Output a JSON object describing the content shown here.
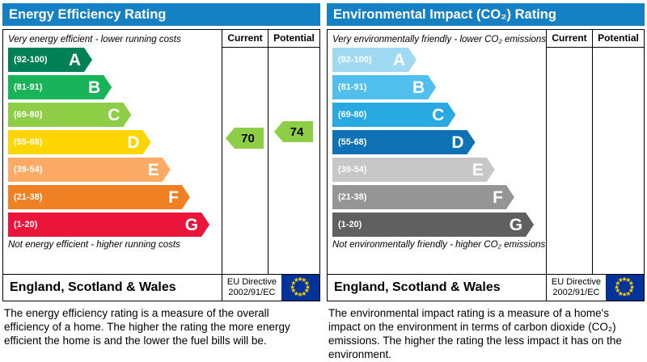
{
  "page": {
    "panels": [
      {
        "id": "energy",
        "title": "Energy Efficiency Rating",
        "columns": {
          "current": "Current",
          "potential": "Potential"
        },
        "top_note": "Very energy efficient - lower running costs",
        "bottom_note": "Not energy efficient - higher running costs",
        "bands": [
          {
            "range": "(92-100)",
            "letter": "A",
            "color": "#008054"
          },
          {
            "range": "(81-91)",
            "letter": "B",
            "color": "#19b459"
          },
          {
            "range": "(69-80)",
            "letter": "C",
            "color": "#8dce46"
          },
          {
            "range": "(55-68)",
            "letter": "D",
            "color": "#ffd500"
          },
          {
            "range": "(39-54)",
            "letter": "E",
            "color": "#fcaa65"
          },
          {
            "range": "(21-38)",
            "letter": "F",
            "color": "#ef8023"
          },
          {
            "range": "(1-20)",
            "letter": "G",
            "color": "#e9153b"
          }
        ],
        "ratings": [
          {
            "kind": "current",
            "value": 70,
            "band": "C",
            "color": "#8dce46"
          },
          {
            "kind": "potential",
            "value": 74,
            "band": "C",
            "color": "#8dce46"
          }
        ],
        "footer": {
          "region": "England, Scotland & Wales",
          "directive_line1": "EU Directive",
          "directive_line2": "2002/91/EC"
        },
        "description": "The energy efficiency rating is a measure of the overall efficiency of a home. The higher the rating the more energy efficient the home is and the lower the fuel bills will be."
      },
      {
        "id": "environmental",
        "title": "Environmental Impact (CO₂) Rating",
        "columns": {
          "current": "Current",
          "potential": "Potential"
        },
        "top_note": "Very environmentally friendly - lower CO₂ emissions",
        "bottom_note": "Not environmentally friendly - higher CO₂ emissions",
        "bands": [
          {
            "range": "(92-100)",
            "letter": "A",
            "color": "#a0d9f2"
          },
          {
            "range": "(81-91)",
            "letter": "B",
            "color": "#50bfee"
          },
          {
            "range": "(69-80)",
            "letter": "C",
            "color": "#28a9e1"
          },
          {
            "range": "(55-68)",
            "letter": "D",
            "color": "#0e72b5"
          },
          {
            "range": "(39-54)",
            "letter": "E",
            "color": "#c7c7c7"
          },
          {
            "range": "(21-38)",
            "letter": "F",
            "color": "#959595"
          },
          {
            "range": "(1-20)",
            "letter": "G",
            "color": "#606060"
          }
        ],
        "ratings": [],
        "footer": {
          "region": "England, Scotland & Wales",
          "directive_line1": "EU Directive",
          "directive_line2": "2002/91/EC"
        },
        "description": "The environmental impact rating is a measure of a home's impact on the environment in terms of carbon dioxide (CO₂) emissions. The higher the rating the less impact it has on the environment."
      }
    ],
    "colors": {
      "header_blue": "#1581c4",
      "eu_flag_blue": "#003399",
      "eu_flag_star_yellow": "#ffcc00",
      "arrow_green": "#8dce46"
    }
  },
  "chart_data": [
    {
      "type": "bar",
      "title": "Energy Efficiency Rating",
      "categories": [
        "A",
        "B",
        "C",
        "D",
        "E",
        "F",
        "G"
      ],
      "band_ranges": [
        "92-100",
        "81-91",
        "69-80",
        "55-68",
        "39-54",
        "21-38",
        "1-20"
      ],
      "band_colors": [
        "#008054",
        "#19b459",
        "#8dce46",
        "#ffd500",
        "#fcaa65",
        "#ef8023",
        "#e9153b"
      ],
      "current": 70,
      "current_band": "C",
      "potential": 74,
      "potential_band": "C",
      "scale_top_note": "Very energy efficient - lower running costs",
      "scale_bottom_note": "Not energy efficient - higher running costs",
      "region": "England, Scotland & Wales",
      "directive": "EU Directive 2002/91/EC"
    },
    {
      "type": "bar",
      "title": "Environmental Impact (CO₂) Rating",
      "categories": [
        "A",
        "B",
        "C",
        "D",
        "E",
        "F",
        "G"
      ],
      "band_ranges": [
        "92-100",
        "81-91",
        "69-80",
        "55-68",
        "39-54",
        "21-38",
        "1-20"
      ],
      "band_colors": [
        "#a0d9f2",
        "#50bfee",
        "#28a9e1",
        "#0e72b5",
        "#c7c7c7",
        "#959595",
        "#606060"
      ],
      "current": null,
      "current_band": null,
      "potential": null,
      "potential_band": null,
      "scale_top_note": "Very environmentally friendly - lower CO₂ emissions",
      "scale_bottom_note": "Not environmentally friendly - higher CO₂ emissions",
      "region": "England, Scotland & Wales",
      "directive": "EU Directive 2002/91/EC"
    }
  ]
}
